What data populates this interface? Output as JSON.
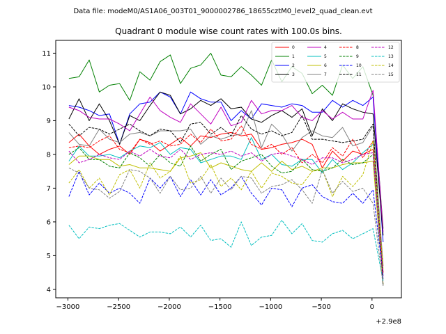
{
  "suptitle": "Data file: modeM0/AS1A06_003T01_9000002786_18655cztM0_level2_quad_clean.evt",
  "chart_data": {
    "type": "line",
    "title": "Quadrant 0 module wise count rates with 100.0s bins.",
    "xlabel": "",
    "ylabel": "",
    "x_offset_label": "+2.9e8",
    "xlim": [
      -3120,
      290
    ],
    "ylim": [
      3.75,
      11.38
    ],
    "x_ticks": [
      -3000,
      -2500,
      -2000,
      -1500,
      -1000,
      -500,
      0
    ],
    "x_tick_labels": [
      "−3000",
      "−2500",
      "−2000",
      "−1500",
      "−1000",
      "−500",
      "0"
    ],
    "y_ticks": [
      4,
      5,
      6,
      7,
      8,
      9,
      10,
      11
    ],
    "y_tick_labels": [
      "4",
      "5",
      "6",
      "7",
      "8",
      "9",
      "10",
      "11"
    ],
    "grid": false,
    "legend_position": "top-right",
    "legend_columns": 4,
    "x": [
      -2990,
      -2890,
      -2790,
      -2690,
      -2590,
      -2490,
      -2390,
      -2290,
      -2190,
      -2090,
      -1990,
      -1890,
      -1790,
      -1690,
      -1590,
      -1490,
      -1390,
      -1290,
      -1190,
      -1090,
      -990,
      -890,
      -790,
      -690,
      -590,
      -490,
      -390,
      -290,
      -190,
      -90,
      10,
      110
    ],
    "series": [
      {
        "name": "0",
        "color": "#ff0000",
        "dash": "solid",
        "values": [
          8.35,
          8.6,
          8.25,
          8.0,
          8.15,
          8.25,
          8.0,
          8.45,
          8.35,
          8.1,
          8.3,
          8.5,
          8.25,
          8.55,
          8.5,
          8.6,
          8.65,
          8.55,
          8.6,
          8.15,
          8.2,
          8.3,
          8.35,
          8.45,
          8.3,
          7.6,
          8.1,
          7.8,
          8.1,
          8.0,
          8.15,
          4.5
        ]
      },
      {
        "name": "1",
        "color": "#008000",
        "dash": "solid",
        "values": [
          10.25,
          10.3,
          10.8,
          9.85,
          10.05,
          10.1,
          9.6,
          10.45,
          10.2,
          10.75,
          10.95,
          10.1,
          10.55,
          10.65,
          11.0,
          10.35,
          10.3,
          10.6,
          10.35,
          10.05,
          10.8,
          10.15,
          10.6,
          10.4,
          9.8,
          10.05,
          9.75,
          10.65,
          10.25,
          10.6,
          9.75,
          5.8
        ]
      },
      {
        "name": "2",
        "color": "#0000ff",
        "dash": "solid",
        "values": [
          9.45,
          9.4,
          9.3,
          9.15,
          9.2,
          8.3,
          9.2,
          9.5,
          9.55,
          9.85,
          9.7,
          9.2,
          9.85,
          9.65,
          9.55,
          9.55,
          9.0,
          9.3,
          9.05,
          9.5,
          9.45,
          9.4,
          9.5,
          9.45,
          9.25,
          9.25,
          9.6,
          9.4,
          9.6,
          9.45,
          9.7,
          5.4
        ]
      },
      {
        "name": "3",
        "color": "#000000",
        "dash": "solid",
        "values": [
          9.05,
          9.65,
          9.0,
          9.5,
          9.0,
          8.3,
          9.15,
          9.0,
          9.45,
          9.85,
          9.75,
          9.2,
          9.35,
          9.6,
          9.45,
          9.65,
          9.35,
          9.4,
          9.05,
          8.95,
          9.15,
          9.3,
          9.1,
          9.35,
          8.55,
          9.35,
          9.0,
          9.5,
          9.35,
          9.25,
          9.2,
          5.6
        ]
      },
      {
        "name": "4",
        "color": "#bf00bf",
        "dash": "solid",
        "values": [
          9.4,
          9.3,
          9.1,
          9.05,
          9.05,
          8.9,
          8.7,
          9.2,
          9.7,
          9.3,
          9.1,
          8.95,
          9.5,
          9.2,
          8.9,
          9.4,
          8.85,
          8.95,
          9.6,
          9.2,
          9.3,
          9.3,
          9.45,
          9.1,
          9.0,
          9.3,
          9.05,
          9.25,
          9.05,
          9.05,
          9.9,
          5.7
        ]
      },
      {
        "name": "5",
        "color": "#00bfbf",
        "dash": "solid",
        "values": [
          7.8,
          8.25,
          7.95,
          7.95,
          8.0,
          7.9,
          8.1,
          8.25,
          8.2,
          8.35,
          8.0,
          8.2,
          8.15,
          7.75,
          7.85,
          7.95,
          7.95,
          7.85,
          8.5,
          7.85,
          8.0,
          7.7,
          7.65,
          7.85,
          7.85,
          7.45,
          7.85,
          7.55,
          7.75,
          8.05,
          8.3,
          4.3
        ]
      },
      {
        "name": "6",
        "color": "#bfbf00",
        "dash": "solid",
        "values": [
          7.7,
          7.95,
          7.95,
          7.85,
          7.85,
          7.65,
          7.7,
          7.6,
          7.6,
          7.55,
          7.5,
          7.9,
          7.95,
          8.05,
          7.6,
          7.75,
          7.65,
          7.55,
          7.5,
          7.75,
          7.5,
          7.8,
          7.55,
          7.65,
          7.5,
          7.6,
          7.6,
          7.7,
          7.75,
          7.75,
          7.8,
          4.15
        ]
      },
      {
        "name": "7",
        "color": "#808080",
        "dash": "solid",
        "values": [
          8.65,
          8.3,
          8.25,
          8.75,
          8.45,
          8.35,
          8.6,
          8.65,
          8.55,
          8.7,
          8.7,
          8.7,
          8.75,
          8.3,
          8.55,
          8.45,
          8.55,
          8.6,
          9.3,
          8.2,
          8.9,
          8.6,
          8.1,
          8.5,
          8.7,
          8.55,
          8.5,
          8.8,
          8.25,
          8.35,
          8.85,
          4.7
        ]
      },
      {
        "name": "8",
        "color": "#ff0000",
        "dash": "dashed",
        "values": [
          8.2,
          8.25,
          8.2,
          8.4,
          8.55,
          8.15,
          8.05,
          8.45,
          8.3,
          8.4,
          8.25,
          8.3,
          8.6,
          8.35,
          8.75,
          8.4,
          8.45,
          8.85,
          8.3,
          8.15,
          8.3,
          8.0,
          8.2,
          7.75,
          8.0,
          7.75,
          8.2,
          7.95,
          8.45,
          7.9,
          8.4,
          4.5
        ]
      },
      {
        "name": "9",
        "color": "#008000",
        "dash": "dashed",
        "values": [
          8.0,
          8.2,
          7.85,
          7.85,
          7.65,
          7.6,
          8.05,
          7.9,
          7.65,
          8.0,
          7.75,
          7.65,
          8.25,
          7.8,
          8.0,
          8.15,
          7.55,
          7.8,
          7.9,
          8.0,
          7.65,
          7.45,
          7.5,
          7.85,
          7.55,
          7.5,
          7.6,
          7.85,
          7.7,
          7.75,
          8.0,
          4.4
        ]
      },
      {
        "name": "10",
        "color": "#0000ff",
        "dash": "dashed",
        "values": [
          6.75,
          7.5,
          6.8,
          7.15,
          6.85,
          7.0,
          6.85,
          6.55,
          7.3,
          7.0,
          7.35,
          6.75,
          7.25,
          6.8,
          7.25,
          6.8,
          7.0,
          7.35,
          6.85,
          6.5,
          7.0,
          6.95,
          6.45,
          7.0,
          7.1,
          6.75,
          6.6,
          6.55,
          6.85,
          6.55,
          6.95,
          4.4
        ]
      },
      {
        "name": "11",
        "color": "#000000",
        "dash": "dashed",
        "values": [
          8.9,
          8.55,
          8.8,
          8.75,
          8.6,
          8.75,
          8.9,
          8.7,
          8.55,
          8.75,
          8.7,
          8.35,
          8.9,
          8.95,
          8.6,
          8.8,
          8.55,
          9.15,
          8.75,
          8.6,
          8.7,
          8.55,
          8.65,
          9.15,
          8.45,
          8.45,
          8.4,
          8.35,
          8.4,
          8.45,
          8.9,
          4.1
        ]
      },
      {
        "name": "12",
        "color": "#bf00bf",
        "dash": "dashed",
        "values": [
          8.1,
          7.75,
          7.85,
          8.0,
          7.9,
          7.85,
          8.1,
          7.95,
          8.15,
          7.95,
          7.9,
          8.15,
          7.85,
          8.0,
          8.05,
          8.0,
          8.1,
          7.95,
          8.05,
          7.8,
          8.0,
          8.05,
          7.95,
          7.85,
          7.7,
          7.9,
          7.9,
          7.75,
          7.85,
          8.0,
          8.05,
          4.3
        ]
      },
      {
        "name": "13",
        "color": "#00bfbf",
        "dash": "dashed",
        "values": [
          5.9,
          5.5,
          5.85,
          5.8,
          5.9,
          5.95,
          5.75,
          5.55,
          5.7,
          5.7,
          5.65,
          5.85,
          5.55,
          5.9,
          5.45,
          5.5,
          5.25,
          6.0,
          5.3,
          5.55,
          5.6,
          6.05,
          5.65,
          5.95,
          5.45,
          5.4,
          5.65,
          5.75,
          5.5,
          5.65,
          5.8,
          4.25
        ]
      },
      {
        "name": "14",
        "color": "#bfbf00",
        "dash": "dashed",
        "values": [
          7.15,
          7.55,
          7.0,
          7.3,
          6.8,
          7.4,
          7.55,
          7.0,
          7.75,
          7.3,
          7.5,
          7.95,
          7.15,
          7.25,
          7.7,
          7.05,
          7.3,
          6.95,
          7.5,
          7.0,
          7.45,
          7.35,
          7.15,
          7.1,
          7.5,
          7.55,
          6.75,
          7.35,
          7.05,
          7.4,
          8.4,
          4.6
        ]
      },
      {
        "name": "15",
        "color": "#808080",
        "dash": "dashed",
        "values": [
          7.6,
          7.45,
          7.0,
          6.95,
          6.7,
          6.9,
          7.55,
          7.5,
          7.3,
          6.85,
          7.35,
          6.95,
          7.0,
          7.35,
          6.85,
          7.3,
          6.95,
          7.35,
          7.3,
          6.85,
          7.05,
          7.1,
          7.25,
          6.95,
          6.55,
          7.55,
          6.85,
          7.2,
          6.9,
          7.0,
          6.55,
          4.1
        ]
      }
    ]
  }
}
